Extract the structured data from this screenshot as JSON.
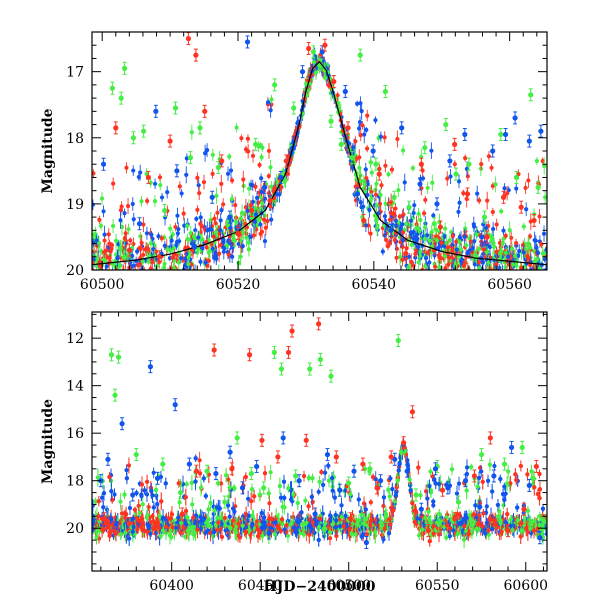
{
  "chart_data": [
    {
      "type": "scatter",
      "panel": "top",
      "xlabel": "",
      "ylabel": "Magnitude",
      "xlim": [
        60498.5,
        60565.5
      ],
      "ylim": [
        20,
        16.4
      ],
      "y_inverted": true,
      "x_ticks": [
        60500,
        60520,
        60540,
        60560
      ],
      "x_tick_labels": [
        "60500",
        "60520",
        "60540",
        "60560"
      ],
      "y_ticks": [
        17,
        18,
        19,
        20
      ],
      "y_tick_labels": [
        "17",
        "18",
        "19",
        "20"
      ],
      "grid": false,
      "legend": "none",
      "colors": {
        "green": "#44ee44",
        "blue": "#1155ee",
        "red": "#ff3322",
        "model": "#000000"
      },
      "model_curve": {
        "x": [
          60498.5,
          60505,
          60510,
          60515,
          60520,
          60524,
          60527,
          60529,
          60530,
          60531,
          60532,
          60533,
          60534,
          60536,
          60538,
          60541,
          60545,
          60550,
          60555,
          60565.5
        ],
        "y": [
          19.92,
          19.85,
          19.76,
          19.62,
          19.42,
          19.1,
          18.55,
          17.8,
          17.3,
          16.95,
          16.85,
          16.98,
          17.3,
          18.05,
          18.75,
          19.25,
          19.55,
          19.72,
          19.82,
          19.92
        ]
      },
      "series": [
        {
          "name": "",
          "color": "#44ee44",
          "x": [
            60501.5,
            60502.8,
            60503.3,
            60504.6,
            60506.1,
            60509.2,
            60510.8,
            60513.0,
            60514.4,
            60517.1,
            60519.5,
            60522.6,
            60525.4,
            60528.2,
            60531.1,
            60533.7,
            60535.2,
            60536.8,
            60538.0,
            60540.3,
            60541.7,
            60543.0,
            60545.2,
            60547.5,
            60548.9,
            60550.6,
            60552.1,
            60554.0,
            60556.3,
            60558.7,
            60561.0,
            60563.1,
            60564.2
          ],
          "y": [
            17.25,
            17.4,
            16.95,
            18.0,
            17.9,
            19.1,
            17.55,
            18.3,
            17.85,
            18.45,
            19.55,
            18.1,
            17.2,
            17.55,
            16.7,
            17.75,
            18.1,
            18.3,
            16.75,
            18.4,
            17.3,
            18.9,
            19.05,
            18.15,
            19.3,
            17.8,
            18.55,
            18.4,
            19.2,
            17.95,
            18.6,
            17.35,
            18.75
          ]
        },
        {
          "name": "",
          "color": "#1155ee",
          "x": [
            60500.2,
            60505.5,
            60507.9,
            60511.0,
            60513.6,
            60516.2,
            60518.8,
            60521.4,
            60523.9,
            60526.3,
            60529.5,
            60532.4,
            60535.8,
            60537.6,
            60539.9,
            60542.5,
            60544.1,
            60546.8,
            60549.3,
            60551.2,
            60553.4,
            60555.9,
            60557.5,
            60559.4,
            60560.8,
            60562.9,
            60564.6
          ],
          "y": [
            18.4,
            19.3,
            17.6,
            18.5,
            19.65,
            18.9,
            19.2,
            16.55,
            18.75,
            18.6,
            17.0,
            16.7,
            17.3,
            18.85,
            18.2,
            19.4,
            17.85,
            18.7,
            19.0,
            18.35,
            17.95,
            19.5,
            18.2,
            17.95,
            17.7,
            18.05,
            17.9
          ]
        },
        {
          "name": "",
          "color": "#ff3322",
          "x": [
            60502.0,
            60504.0,
            60506.8,
            60508.4,
            60510.0,
            60512.7,
            60513.8,
            60515.1,
            60517.6,
            60520.0,
            60522.0,
            60524.7,
            60527.1,
            60530.4,
            60532.8,
            60534.1,
            60536.2,
            60538.5,
            60540.8,
            60542.9,
            60544.7,
            60547.0,
            60549.8,
            60551.9,
            60553.8,
            60556.7,
            60559.1,
            60561.7,
            60563.6
          ],
          "y": [
            17.85,
            19.7,
            18.6,
            19.8,
            18.05,
            16.5,
            16.75,
            17.6,
            18.35,
            19.45,
            19.1,
            18.95,
            18.35,
            16.65,
            16.6,
            17.15,
            17.85,
            19.25,
            18.55,
            19.15,
            19.75,
            18.4,
            19.35,
            18.1,
            18.85,
            19.5,
            18.9,
            19.05,
            19.25
          ]
        }
      ]
    },
    {
      "type": "scatter",
      "panel": "bottom",
      "xlabel": "HJD−2400000",
      "ylabel": "Magnitude",
      "xlim": [
        60355,
        60612
      ],
      "ylim": [
        21.8,
        10.9
      ],
      "y_inverted": true,
      "x_ticks": [
        60400,
        60450,
        60500,
        60550,
        60600
      ],
      "x_tick_labels": [
        "60400",
        "60450",
        "60500",
        "60550",
        "60600"
      ],
      "y_ticks": [
        12,
        14,
        16,
        18,
        20
      ],
      "y_tick_labels": [
        "12",
        "14",
        "16",
        "18",
        "20"
      ],
      "grid": false,
      "legend": "none",
      "colors": {
        "green": "#44ee44",
        "blue": "#1155ee",
        "red": "#ff3322"
      },
      "series": [
        {
          "name": "",
          "color": "#44ee44",
          "x": [
            60366,
            60368,
            60370,
            60380,
            60395,
            60405,
            60420,
            60430,
            60437,
            60445,
            60452,
            60458,
            60462,
            60470,
            60478,
            60484,
            60490,
            60500,
            60512,
            60521,
            60528,
            60538,
            60550,
            60562,
            60575,
            60588,
            60598,
            60604
          ],
          "y": [
            12.7,
            14.4,
            12.8,
            16.9,
            17.3,
            18.5,
            17.6,
            18.9,
            16.2,
            17.7,
            18.3,
            12.6,
            13.3,
            17.8,
            13.3,
            12.9,
            13.6,
            18.1,
            17.5,
            19.5,
            12.1,
            18.6,
            17.4,
            18.9,
            16.9,
            17.3,
            16.6,
            17.9
          ]
        },
        {
          "name": "",
          "color": "#1155ee",
          "x": [
            60360,
            60364,
            60372,
            60378,
            60388,
            60392,
            60402,
            60410,
            60418,
            60425,
            60433,
            60440,
            60448,
            60455,
            60463,
            60472,
            60481,
            60488,
            60495,
            60503,
            60510,
            60518,
            60526,
            60533,
            60541,
            60549,
            60556,
            60566,
            60574,
            60582,
            60592,
            60602,
            60608
          ],
          "y": [
            18.0,
            17.1,
            15.6,
            18.6,
            13.2,
            17.9,
            14.8,
            17.3,
            19.6,
            17.7,
            16.8,
            18.3,
            17.4,
            20.2,
            16.2,
            18.0,
            19.4,
            16.9,
            18.4,
            17.6,
            20.6,
            18.0,
            17.1,
            17.6,
            19.2,
            17.5,
            18.3,
            18.0,
            19.1,
            17.8,
            16.6,
            18.2,
            20.4
          ]
        },
        {
          "name": "",
          "color": "#ff3322",
          "x": [
            60362,
            60376,
            60390,
            60406,
            60414,
            60424,
            60434,
            60444,
            60451,
            60460,
            60466,
            60468,
            60476,
            60483,
            60493,
            60501,
            60508,
            60516,
            60524,
            60531,
            60536,
            60545,
            60553,
            60560,
            60571,
            60580,
            60590,
            60599,
            60606
          ],
          "y": [
            19.6,
            19.8,
            20.0,
            19.4,
            17.6,
            12.5,
            17.5,
            12.7,
            16.3,
            17.0,
            12.6,
            11.7,
            16.3,
            11.4,
            17.0,
            19.6,
            17.3,
            18.3,
            17.0,
            16.4,
            15.1,
            20.1,
            18.4,
            19.6,
            17.8,
            16.2,
            20.1,
            19.2,
            17.4
          ]
        }
      ]
    }
  ]
}
